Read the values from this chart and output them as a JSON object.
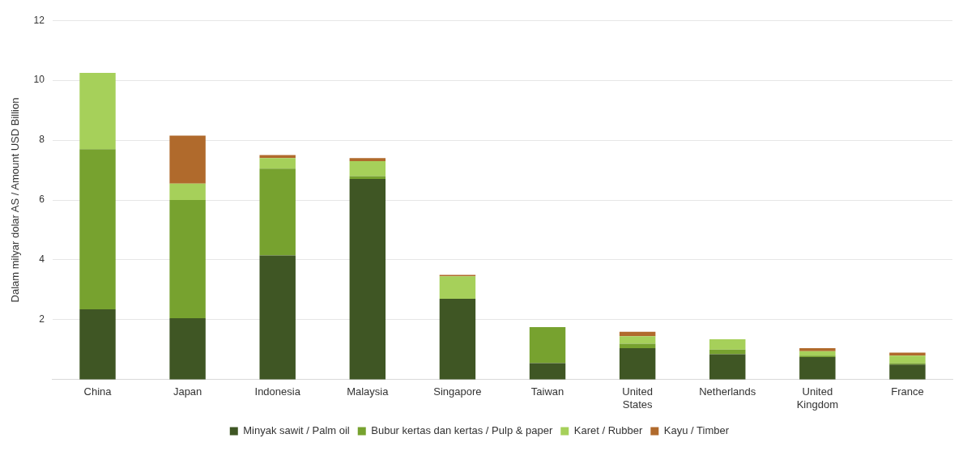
{
  "chart_data": {
    "type": "bar",
    "stacked": true,
    "ylabel": "Dalam milyar dolar AS / Amount USD Billion",
    "categories": [
      "China",
      "Japan",
      "Indonesia",
      "Malaysia",
      "Singapore",
      "Taiwan",
      "United States",
      "Netherlands",
      "United Kingdom",
      "France"
    ],
    "series": [
      {
        "name": "Minyak sawit / Palm oil",
        "color": "#3f5624",
        "values": [
          2.35,
          2.05,
          4.15,
          6.7,
          2.7,
          0.55,
          1.05,
          0.85,
          0.75,
          0.5
        ]
      },
      {
        "name": "Bubur kertas dan kertas / Pulp & paper",
        "color": "#77a22f",
        "values": [
          5.35,
          3.95,
          2.9,
          0.1,
          0,
          1.2,
          0.15,
          0.15,
          0.05,
          0.05
        ]
      },
      {
        "name": "Karet / Rubber",
        "color": "#a6d05a",
        "values": [
          2.55,
          0.55,
          0.35,
          0.5,
          0.75,
          0,
          0.25,
          0.35,
          0.15,
          0.25
        ]
      },
      {
        "name": "Kayu / Timber",
        "color": "#b06a2c",
        "values": [
          0,
          1.6,
          0.1,
          0.1,
          0.05,
          0,
          0.15,
          0,
          0.1,
          0.1
        ]
      }
    ],
    "ylim": [
      0,
      12
    ],
    "yticks": [
      2,
      4,
      6,
      8,
      10,
      12
    ],
    "grid": "y",
    "legend": "bottom"
  }
}
